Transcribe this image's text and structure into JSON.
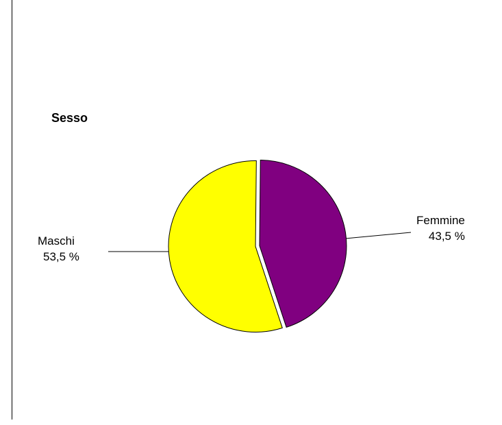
{
  "chart_data": {
    "type": "pie",
    "title": "Sesso",
    "slices": [
      {
        "name": "Femmine",
        "value_label": "43,5 %",
        "value": 43.5,
        "color": "#800080"
      },
      {
        "name": "Maschi",
        "value_label": "53,5 %",
        "value": 53.5,
        "color": "#ffff00"
      }
    ],
    "stroke_color": "#000000"
  }
}
